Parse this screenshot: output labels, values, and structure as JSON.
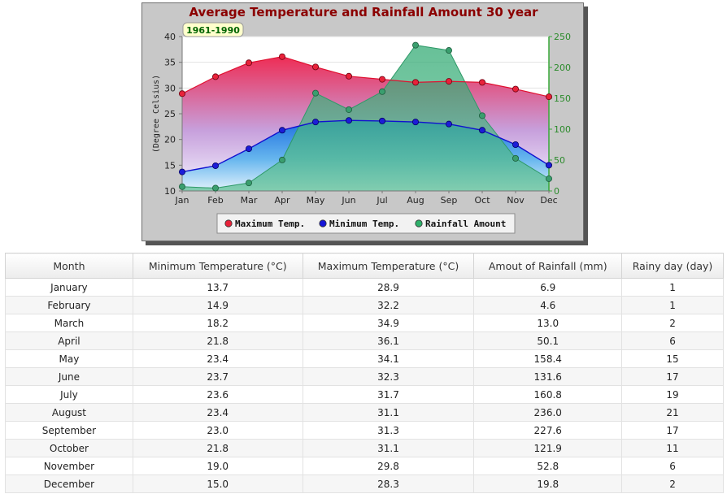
{
  "chart_data": {
    "type": "line",
    "title": "Average Temperature and Rainfall Amount 30 year",
    "period_badge": "1961-1990",
    "categories": [
      "Jan",
      "Feb",
      "Mar",
      "Apr",
      "May",
      "Jun",
      "Jul",
      "Aug",
      "Sep",
      "Oct",
      "Nov",
      "Dec"
    ],
    "ylabel": "(Degree Celsius)",
    "y_left": {
      "min": 10,
      "max": 40,
      "ticks": [
        10,
        15,
        20,
        25,
        30,
        35,
        40
      ]
    },
    "y_right": {
      "min": 0,
      "max": 250,
      "ticks": [
        0,
        50,
        100,
        150,
        200,
        250
      ]
    },
    "grid": true,
    "legend_position": "bottom",
    "series": [
      {
        "name": "Maximum Temp.",
        "axis": "left",
        "kind": "area",
        "color": "#e8223a",
        "values": [
          28.9,
          32.2,
          34.9,
          36.1,
          34.1,
          32.3,
          31.7,
          31.1,
          31.3,
          31.1,
          29.8,
          28.3
        ]
      },
      {
        "name": "Minimum Temp.",
        "axis": "left",
        "kind": "area",
        "color": "#1414d8",
        "values": [
          13.7,
          14.9,
          18.2,
          21.8,
          23.4,
          23.7,
          23.6,
          23.4,
          23.0,
          21.8,
          19.0,
          15.0
        ]
      },
      {
        "name": "Rainfall Amount",
        "axis": "right",
        "kind": "area",
        "color": "#2eb06a",
        "values": [
          6.9,
          4.6,
          13.0,
          50.1,
          158.4,
          131.6,
          160.8,
          236.0,
          227.6,
          121.9,
          52.8,
          19.8
        ]
      }
    ]
  },
  "table": {
    "headers": [
      "Month",
      "Minimum Temperature (°C)",
      "Maximum Temperature (°C)",
      "Amout of Rainfall (mm)",
      "Rainy day (day)"
    ],
    "rows": [
      [
        "January",
        "13.7",
        "28.9",
        "6.9",
        "1"
      ],
      [
        "February",
        "14.9",
        "32.2",
        "4.6",
        "1"
      ],
      [
        "March",
        "18.2",
        "34.9",
        "13.0",
        "2"
      ],
      [
        "April",
        "21.8",
        "36.1",
        "50.1",
        "6"
      ],
      [
        "May",
        "23.4",
        "34.1",
        "158.4",
        "15"
      ],
      [
        "June",
        "23.7",
        "32.3",
        "131.6",
        "17"
      ],
      [
        "July",
        "23.6",
        "31.7",
        "160.8",
        "19"
      ],
      [
        "August",
        "23.4",
        "31.1",
        "236.0",
        "21"
      ],
      [
        "September",
        "23.0",
        "31.3",
        "227.6",
        "17"
      ],
      [
        "October",
        "21.8",
        "31.1",
        "121.9",
        "11"
      ],
      [
        "November",
        "19.0",
        "29.8",
        "52.8",
        "6"
      ],
      [
        "December",
        "15.0",
        "28.3",
        "19.8",
        "2"
      ]
    ]
  }
}
